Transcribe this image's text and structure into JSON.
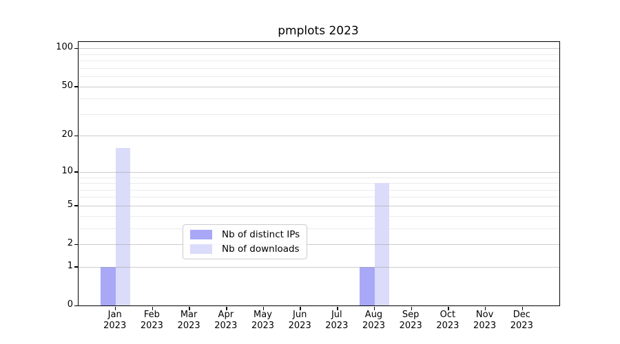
{
  "figure": {
    "title": "pmplots 2023",
    "background": "#ffffff"
  },
  "chart_data": {
    "type": "bar",
    "title": "pmplots 2023",
    "categories": [
      "Jan",
      "Feb",
      "Mar",
      "Apr",
      "May",
      "Jun",
      "Jul",
      "Aug",
      "Sep",
      "Oct",
      "Nov",
      "Dec"
    ],
    "category_year": "2023",
    "series": [
      {
        "name": "Nb of distinct IPs",
        "color": "#a8a8f7",
        "values": [
          1,
          0,
          0,
          0,
          0,
          0,
          0,
          1,
          0,
          0,
          0,
          0
        ]
      },
      {
        "name": "Nb of downloads",
        "color": "#dbdbfa",
        "values": [
          16,
          0,
          0,
          0,
          0,
          0,
          0,
          8,
          0,
          0,
          0,
          0
        ]
      }
    ],
    "yscale": "log1p",
    "ylim": [
      0,
      112
    ],
    "yticks": [
      0,
      1,
      2,
      5,
      10,
      20,
      50,
      100
    ],
    "minor_yticks": [
      3,
      4,
      6,
      7,
      8,
      9,
      30,
      40,
      60,
      70,
      80,
      90
    ],
    "grid": true,
    "legend": {
      "position": "lower center",
      "entries": [
        "Nb of distinct IPs",
        "Nb of downloads"
      ]
    }
  },
  "colors": {
    "major_grid": "rgba(160,160,160,0.55)",
    "minor_grid": "rgba(0,0,0,0.08)",
    "spine": "#000000",
    "text": "#000000"
  }
}
